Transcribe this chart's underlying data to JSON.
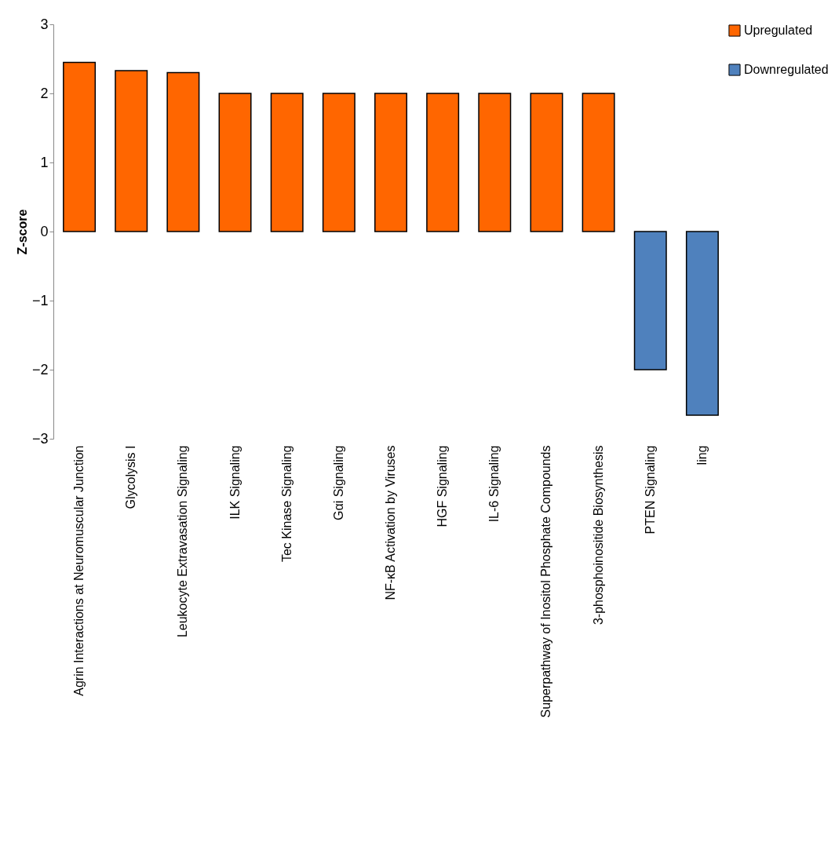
{
  "chart_data": {
    "type": "bar",
    "ylabel": "Z-score",
    "categories": [
      "Agrin Interactions at Neuromuscular Junction",
      "Glycolysis I",
      "Leukocyte Extravasation Signaling",
      "ILK Signaling",
      "Tec Kinase Signaling",
      "Gαi Signaling",
      "NF-κB Activation by Viruses",
      "HGF Signaling",
      "IL-6 Signaling",
      "Superpathway of Inositol Phosphate Compounds",
      "3-phosphoinositide Biosynthesis",
      "PTEN Signaling",
      "ling"
    ],
    "series": [
      {
        "name": "Upregulated",
        "color": "#ff6600",
        "values": [
          2.45,
          2.33,
          2.3,
          2,
          2,
          2,
          2,
          2,
          2,
          2,
          2,
          null,
          null
        ]
      },
      {
        "name": "Downregulated",
        "color": "#4f81bd",
        "values": [
          null,
          null,
          null,
          null,
          null,
          null,
          null,
          null,
          null,
          null,
          null,
          -2,
          -2.66
        ]
      }
    ],
    "ylim": [
      -3,
      3
    ],
    "yticks": [
      -3,
      -2,
      -1,
      0,
      1,
      2,
      3
    ],
    "grid": false,
    "legend": "right"
  }
}
